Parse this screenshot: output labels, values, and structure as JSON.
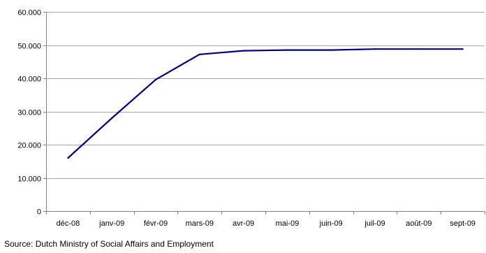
{
  "chart_data": {
    "type": "line",
    "title": "",
    "xlabel": "",
    "ylabel": "",
    "categories": [
      "déc-08",
      "janv-09",
      "févr-09",
      "mars-09",
      "avr-09",
      "mai-09",
      "juin-09",
      "juil-09",
      "août-09",
      "sept-09"
    ],
    "series": [
      {
        "name": "",
        "color": "#000080",
        "values": [
          16000,
          28000,
          39600,
          47200,
          48300,
          48500,
          48500,
          48800,
          48800,
          48800
        ]
      }
    ],
    "ylim": [
      0,
      60000
    ],
    "yticks": [
      0,
      10000,
      20000,
      30000,
      40000,
      50000,
      60000
    ],
    "ytick_labels": [
      "0",
      "10.000",
      "20.000",
      "30.000",
      "40.000",
      "50.000",
      "60.000"
    ],
    "grid": true,
    "legend": "none"
  },
  "source_text": "Source: Dutch Ministry of Social Affairs and Employment"
}
